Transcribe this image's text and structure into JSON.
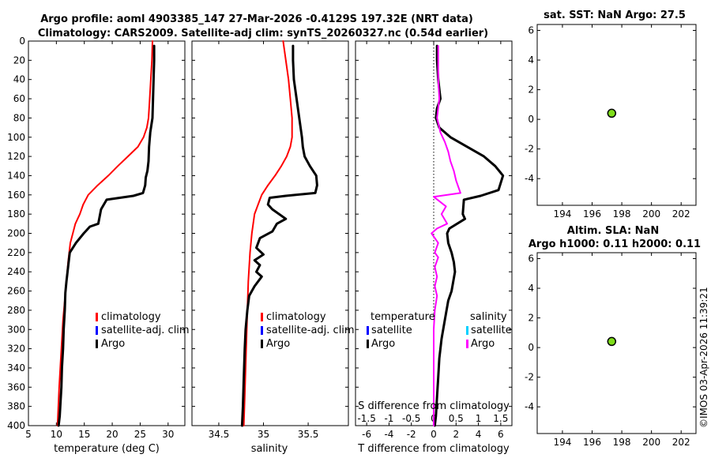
{
  "titles": {
    "line1": "Argo profile: aoml 4903385_147 27-Mar-2026 -0.4129S 197.32E (NRT data)",
    "line2": "Climatology: CARS2009. Satellite-adj clim: synTS_20260327.nc (0.54d earlier)"
  },
  "stamp": "©IMOS 03-Apr-2026 11:39:21",
  "colors": {
    "climatology": "#ff0000",
    "satellite": "#0000ff",
    "argo": "#000000",
    "argo_salinity": "#ff00ff",
    "satellite_salinity": "#00d0ff",
    "marker": "#7fdd1a"
  },
  "chart_data": [
    {
      "id": "temperature",
      "type": "line",
      "xlabel": "temperature (deg C)",
      "xlim": [
        5,
        33
      ],
      "ylim": [
        0,
        400
      ],
      "xticks": [
        "5",
        "10",
        "15",
        "20",
        "25",
        "30"
      ],
      "xtick_values": [
        5,
        10,
        15,
        20,
        25,
        30
      ],
      "yticks": [
        "0",
        "20",
        "40",
        "60",
        "80",
        "100",
        "120",
        "140",
        "160",
        "180",
        "200",
        "220",
        "240",
        "260",
        "280",
        "300",
        "320",
        "340",
        "360",
        "380",
        "400"
      ],
      "ytick_values": [
        0,
        20,
        40,
        60,
        80,
        100,
        120,
        140,
        160,
        180,
        200,
        220,
        240,
        260,
        280,
        300,
        320,
        340,
        360,
        380,
        400
      ],
      "legend": [
        "climatology",
        "satellite-adj. clim",
        "Argo"
      ],
      "series": [
        {
          "name": "climatology",
          "color": "#ff0000",
          "width": 2,
          "x": [
            27.2,
            27.1,
            26.9,
            26.7,
            26.5,
            26.2,
            25.6,
            24.6,
            22.8,
            21.0,
            19.3,
            17.4,
            15.7,
            14.8,
            14.2,
            13.4,
            12.5,
            12.1,
            11.8,
            11.5,
            11.2,
            11.0,
            10.8,
            10.5,
            10.2
          ],
          "y": [
            0,
            20,
            40,
            60,
            80,
            90,
            100,
            110,
            120,
            130,
            140,
            150,
            160,
            170,
            180,
            190,
            210,
            230,
            250,
            270,
            290,
            310,
            330,
            360,
            400
          ]
        },
        {
          "name": "Argo",
          "color": "#000000",
          "width": 3,
          "x": [
            27.5,
            27.5,
            27.4,
            27.3,
            27.2,
            26.8,
            26.6,
            26.5,
            26.3,
            26.0,
            25.9,
            25.5,
            23.8,
            19.0,
            18.0,
            17.5,
            16.0,
            14.9,
            13.5,
            12.4,
            12.2,
            12.0,
            11.8,
            11.6,
            11.5,
            11.3,
            11.2,
            11.0,
            10.9,
            10.7,
            10.6,
            10.4
          ],
          "y": [
            5,
            20,
            40,
            60,
            80,
            95,
            110,
            125,
            135,
            142,
            150,
            158,
            161,
            165,
            175,
            190,
            193,
            200,
            210,
            220,
            230,
            240,
            250,
            262,
            280,
            300,
            320,
            340,
            360,
            380,
            390,
            400
          ]
        }
      ]
    },
    {
      "id": "salinity",
      "type": "line",
      "xlabel": "salinity",
      "xlim": [
        34.2,
        35.95
      ],
      "ylim": [
        0,
        400
      ],
      "xticks": [
        "34.5",
        "35",
        "35.5"
      ],
      "xtick_values": [
        34.5,
        35,
        35.5
      ],
      "legend": [
        "climatology",
        "satellite-adj. clim",
        "Argo"
      ],
      "series": [
        {
          "name": "climatology",
          "color": "#ff0000",
          "width": 2,
          "x": [
            35.22,
            35.25,
            35.28,
            35.3,
            35.32,
            35.32,
            35.3,
            35.26,
            35.2,
            35.13,
            35.05,
            34.98,
            34.94,
            34.9,
            34.87,
            34.85,
            34.83,
            34.82,
            34.81,
            34.8,
            34.79,
            34.78
          ],
          "y": [
            0,
            20,
            40,
            60,
            80,
            100,
            110,
            120,
            130,
            140,
            150,
            160,
            170,
            180,
            200,
            220,
            250,
            280,
            310,
            340,
            370,
            400
          ]
        },
        {
          "name": "Argo",
          "color": "#000000",
          "width": 3,
          "x": [
            35.33,
            35.33,
            35.34,
            35.37,
            35.4,
            35.43,
            35.44,
            35.46,
            35.52,
            35.59,
            35.6,
            35.58,
            35.25,
            35.07,
            35.05,
            35.1,
            35.25,
            35.15,
            35.1,
            34.96,
            34.92,
            35.0,
            34.9,
            34.96,
            34.92,
            34.98,
            34.9,
            34.84,
            34.82,
            34.8,
            34.79,
            34.78,
            34.77,
            34.76
          ],
          "y": [
            5,
            20,
            40,
            60,
            80,
            100,
            110,
            120,
            130,
            140,
            150,
            158,
            161,
            163,
            170,
            175,
            185,
            190,
            198,
            205,
            215,
            222,
            228,
            233,
            240,
            245,
            255,
            265,
            280,
            300,
            320,
            350,
            380,
            400
          ]
        }
      ]
    },
    {
      "id": "difference",
      "type": "line",
      "xlabel": "T difference from climatology",
      "xlabel_top": "S difference from climatology",
      "xlim": [
        -7,
        7
      ],
      "ylim": [
        0,
        400
      ],
      "xticks": [
        "-6",
        "-4",
        "-2",
        "0",
        "2",
        "4",
        "6"
      ],
      "xtick_values": [
        -6,
        -4,
        -2,
        0,
        2,
        4,
        6
      ],
      "xticks_top": [
        "-1.5",
        "-1",
        "-0.5",
        "0",
        "0.5",
        "1",
        "1.5"
      ],
      "xtick_top_values": [
        -6,
        -4,
        -2,
        0,
        2,
        4,
        6
      ],
      "legend_t": [
        "temperature",
        "satellite",
        "Argo"
      ],
      "legend_s": [
        "salinity",
        "satellite",
        "Argo"
      ],
      "series": [
        {
          "name": "Argo T difference",
          "color": "#000000",
          "width": 3,
          "x": [
            0.3,
            0.3,
            0.4,
            0.6,
            0.3,
            0.2,
            0.5,
            1.5,
            3.0,
            4.5,
            5.5,
            6.2,
            5.8,
            4.2,
            2.7,
            2.6,
            2.8,
            1.4,
            1.2,
            1.3,
            1.6,
            1.8,
            1.9,
            1.6,
            1.3,
            1.0,
            0.7,
            0.5,
            0.4,
            0.3,
            0.2,
            0.1
          ],
          "y": [
            5,
            20,
            40,
            60,
            70,
            80,
            90,
            100,
            110,
            120,
            130,
            140,
            155,
            161,
            165,
            180,
            185,
            195,
            200,
            210,
            220,
            230,
            240,
            260,
            270,
            290,
            310,
            330,
            350,
            370,
            390,
            400
          ]
        },
        {
          "name": "Argo S difference",
          "color": "#ff00ff",
          "width": 2,
          "x": [
            0.4,
            0.4,
            0.4,
            0.5,
            0.3,
            0.6,
            1.0,
            1.3,
            1.5,
            1.8,
            2.0,
            2.4,
            0.0,
            1.1,
            0.7,
            1.2,
            0.3,
            -0.2,
            0.4,
            0.1,
            0.4,
            0.1,
            0.3,
            0.1,
            0.3,
            0.1,
            0.0,
            0.0,
            0.0,
            0.0,
            0.0
          ],
          "y": [
            5,
            20,
            40,
            60,
            80,
            95,
            105,
            115,
            125,
            135,
            145,
            158,
            162,
            172,
            180,
            190,
            195,
            200,
            210,
            220,
            225,
            235,
            245,
            255,
            265,
            280,
            300,
            320,
            350,
            380,
            400
          ]
        }
      ]
    },
    {
      "id": "sst",
      "type": "scatter",
      "title": "sat. SST: NaN Argo: 27.5",
      "xlim": [
        192.3,
        203
      ],
      "ylim": [
        -5.8,
        6.4
      ],
      "xticks": [
        "194",
        "196",
        "198",
        "200",
        "202"
      ],
      "xtick_values": [
        194,
        196,
        198,
        200,
        202
      ],
      "yticks": [
        "6",
        "4",
        "2",
        "0",
        "-2",
        "-4"
      ],
      "ytick_values": [
        6,
        4,
        2,
        0,
        -2,
        -4
      ],
      "points": [
        {
          "x": 197.32,
          "y": 0.41
        }
      ]
    },
    {
      "id": "sla",
      "type": "scatter",
      "title_line1": "Altim. SLA: NaN",
      "title_line2": "Argo h1000: 0.11 h2000: 0.11",
      "xlim": [
        192.3,
        203
      ],
      "ylim": [
        -5.8,
        6.4
      ],
      "xticks": [
        "194",
        "196",
        "198",
        "200",
        "202"
      ],
      "xtick_values": [
        194,
        196,
        198,
        200,
        202
      ],
      "yticks": [
        "6",
        "4",
        "2",
        "0",
        "-2",
        "-4"
      ],
      "ytick_values": [
        6,
        4,
        2,
        0,
        -2,
        -4
      ],
      "points": [
        {
          "x": 197.32,
          "y": 0.41
        }
      ]
    }
  ]
}
